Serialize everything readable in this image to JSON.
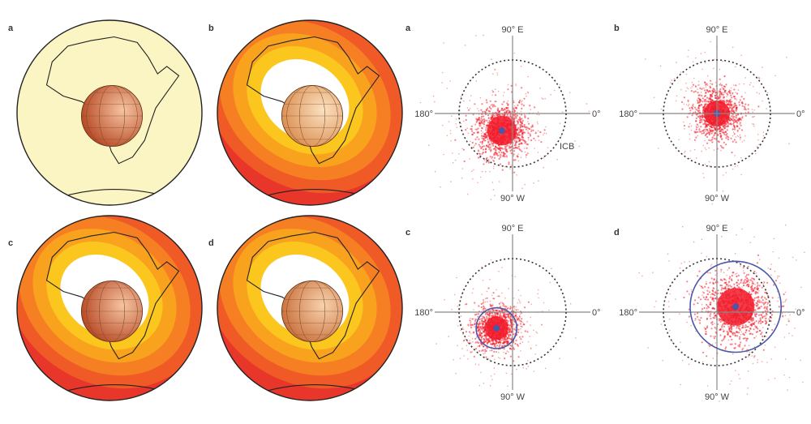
{
  "globes": [
    {
      "letter": "a",
      "style": "uniform",
      "colors": {
        "mantle": "#fbf5c3",
        "core_light": "#f6c4a2",
        "core_dark": "#b3401c"
      }
    },
    {
      "letter": "b",
      "style": "banded",
      "colors": {
        "bands": [
          "#e8362a",
          "#ef5a26",
          "#f57f22",
          "#f9a21d",
          "#fbc71f",
          "#ffffff"
        ],
        "core_light": "#fbe1c1",
        "core_dark": "#d98a4a"
      }
    },
    {
      "letter": "c",
      "style": "banded",
      "colors": {
        "bands": [
          "#e8362a",
          "#ef5a26",
          "#f57f22",
          "#f9a21d",
          "#fbc71f",
          "#ffffff"
        ],
        "core_light": "#f6c4a2",
        "core_dark": "#b3401c"
      }
    },
    {
      "letter": "d",
      "style": "banded",
      "colors": {
        "bands": [
          "#e8362a",
          "#ef5a26",
          "#f57f22",
          "#f9a21d",
          "#fbc71f",
          "#ffffff"
        ],
        "core_light": "#f8d2ad",
        "core_dark": "#c76a35"
      }
    }
  ],
  "polar_plots": [
    {
      "letter": "a",
      "cloud_offset": [
        -0.2,
        -0.32
      ],
      "cloud_spread": 0.25,
      "blue_circle_radius": 0,
      "icb_label": "ICB"
    },
    {
      "letter": "b",
      "cloud_offset": [
        0.0,
        0.0
      ],
      "cloud_spread": 0.22,
      "blue_circle_radius": 0,
      "icb_label": ""
    },
    {
      "letter": "c",
      "cloud_offset": [
        -0.3,
        -0.3
      ],
      "cloud_spread": 0.2,
      "blue_circle_radius": 0.38,
      "icb_label": ""
    },
    {
      "letter": "d",
      "cloud_offset": [
        0.35,
        0.1
      ],
      "cloud_spread": 0.32,
      "blue_circle_radius": 0.85,
      "icb_label": ""
    }
  ],
  "axis_labels": {
    "top": "90° E",
    "bottom": "90° W",
    "left": "180°",
    "right": "0°"
  },
  "colors": {
    "dot": "#e8362a",
    "core_dot": "#f21b2a",
    "blue": "#4a58a8",
    "dash": "#333333",
    "axis": "#888888"
  }
}
